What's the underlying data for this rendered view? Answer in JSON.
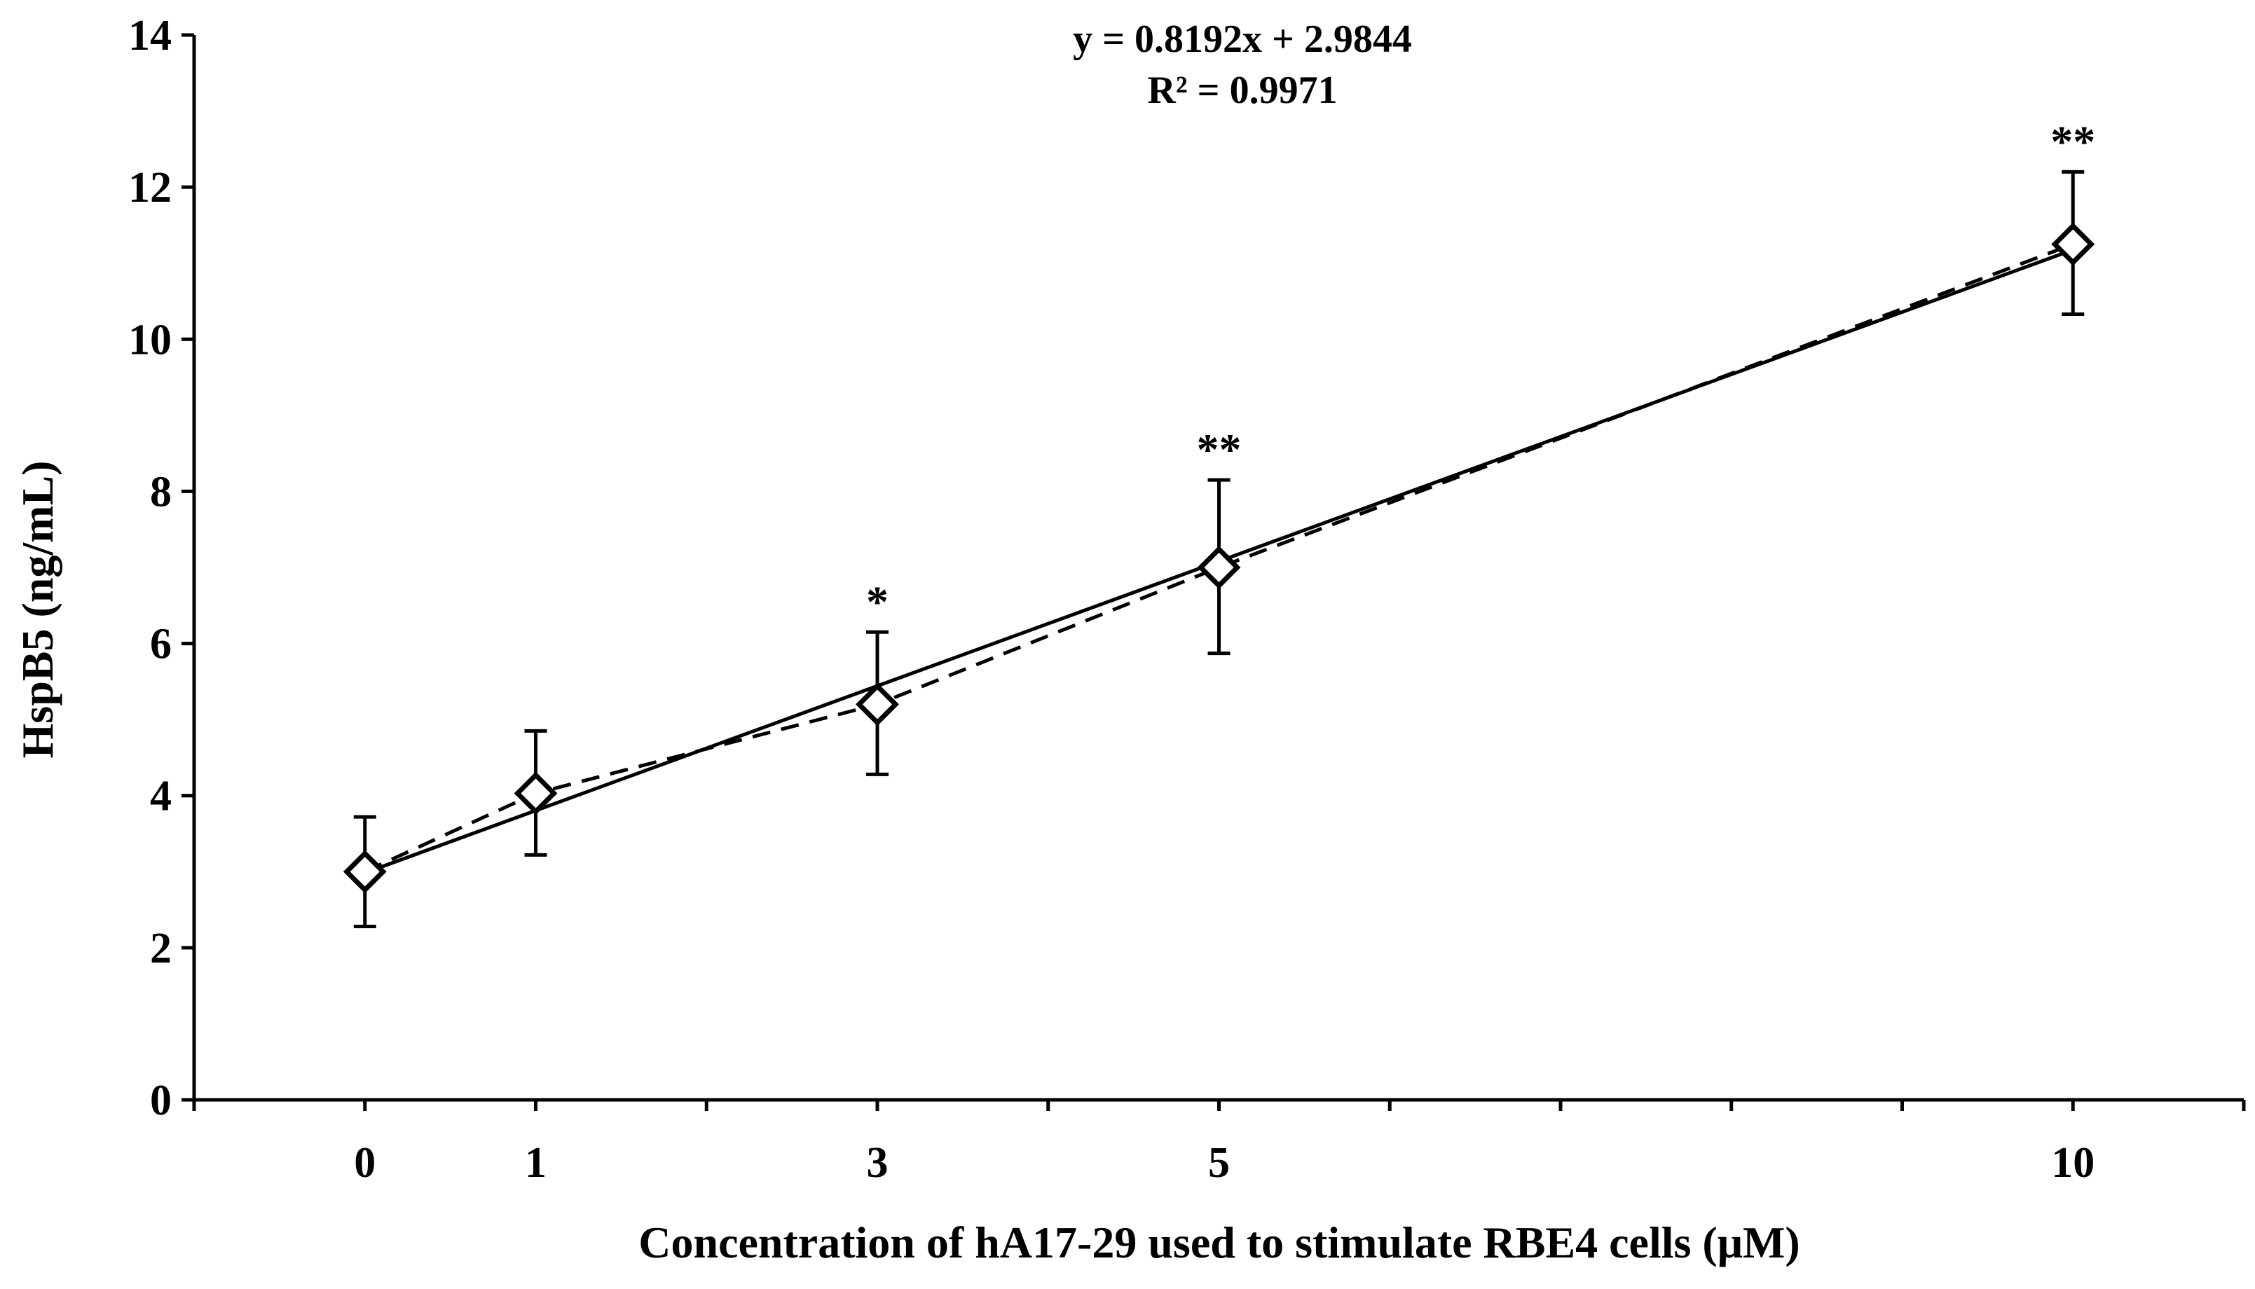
{
  "chart_data": {
    "type": "scatter",
    "title": "",
    "xlabel": "Concentration of hA17-29 used to stimulate RBE4 cells (μM)",
    "ylabel": "HspB5 (ng/mL)",
    "xlim": [
      -1,
      11
    ],
    "ylim": [
      0,
      14
    ],
    "x_ticks": [
      0,
      1,
      3,
      5,
      10
    ],
    "y_ticks": [
      0,
      2,
      4,
      6,
      8,
      10,
      12,
      14
    ],
    "x_tick_labels": [
      "0",
      "1",
      "3",
      "5",
      "10"
    ],
    "y_tick_labels": [
      "0",
      "2",
      "4",
      "6",
      "8",
      "10",
      "12",
      "14"
    ],
    "grid": false,
    "series": [
      {
        "marker": "diamond-open",
        "line": "dashed",
        "x": [
          0,
          1,
          3,
          5,
          10
        ],
        "y": [
          3.0,
          4.03,
          5.2,
          7.0,
          11.25
        ],
        "err_upper": [
          3.72,
          4.85,
          6.15,
          8.15,
          12.2
        ],
        "err_lower": [
          2.28,
          3.22,
          4.28,
          5.87,
          10.33
        ],
        "significance": [
          "",
          "",
          "*",
          "**",
          "**"
        ]
      }
    ],
    "trendline": {
      "slope": 0.8192,
      "intercept": 2.9844,
      "x_range": [
        0,
        10
      ],
      "line": "solid"
    },
    "annotations": {
      "equation": "y = 0.8192x + 2.9844",
      "r_squared": "R² = 0.9971"
    },
    "colors": {
      "line": "#000000",
      "marker_fill": "#ffffff",
      "background": "#ffffff"
    }
  }
}
